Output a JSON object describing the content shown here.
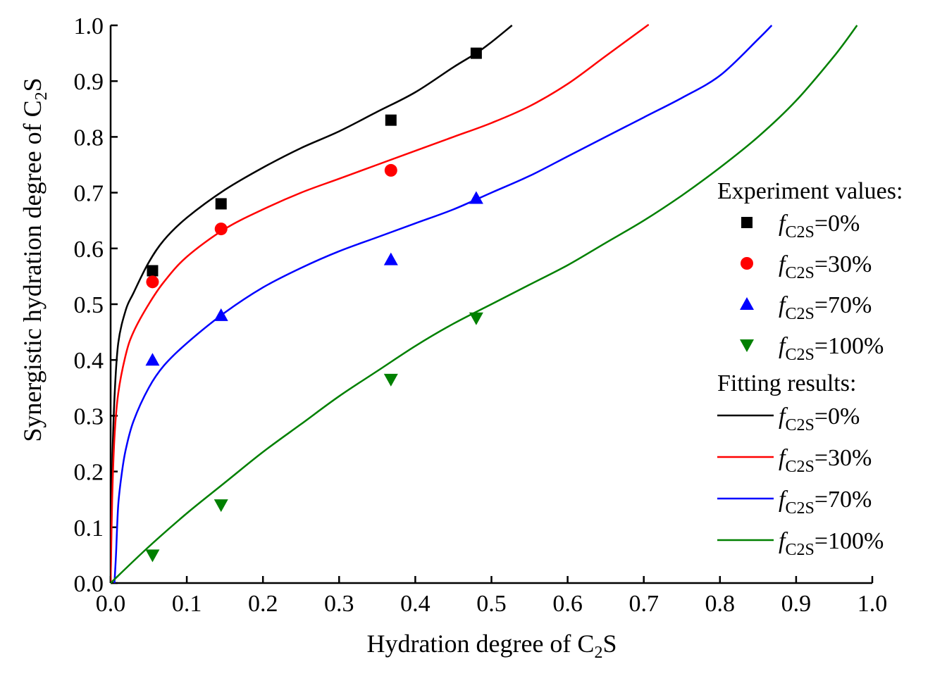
{
  "chart_data": {
    "type": "scatter",
    "xlabel": {
      "text": "Hydration degree of C",
      "sub": "2",
      "tail": "S"
    },
    "ylabel": {
      "text": "Synergistic hydration degree of C",
      "sub": "2",
      "tail": "S"
    },
    "xlim": [
      0.0,
      1.0
    ],
    "ylim": [
      0.0,
      1.0
    ],
    "xticks": [
      "0.0",
      "0.1",
      "0.2",
      "0.3",
      "0.4",
      "0.5",
      "0.6",
      "0.7",
      "0.8",
      "0.9",
      "1.0"
    ],
    "yticks": [
      "0.0",
      "0.1",
      "0.2",
      "0.3",
      "0.4",
      "0.5",
      "0.6",
      "0.7",
      "0.8",
      "0.9",
      "1.0"
    ],
    "legend": {
      "position": "right",
      "experiment_title": "Experiment values:",
      "fitting_title": "Fitting results:",
      "label_prefix": "f",
      "label_sub": "C2S"
    },
    "experiment": [
      {
        "name": "fC2S=0%",
        "value_label": "=0%",
        "marker": "square",
        "color": "#000000",
        "x": [
          0.055,
          0.145,
          0.368,
          0.48
        ],
        "y": [
          0.56,
          0.68,
          0.83,
          0.95
        ]
      },
      {
        "name": "fC2S=30%",
        "value_label": "=30%",
        "marker": "circle",
        "color": "#ff0000",
        "x": [
          0.055,
          0.145,
          0.368
        ],
        "y": [
          0.54,
          0.635,
          0.74
        ]
      },
      {
        "name": "fC2S=70%",
        "value_label": "=70%",
        "marker": "triangle-up",
        "color": "#0000ff",
        "x": [
          0.055,
          0.145,
          0.368,
          0.48
        ],
        "y": [
          0.4,
          0.48,
          0.58,
          0.69
        ]
      },
      {
        "name": "fC2S=100%",
        "value_label": "=100%",
        "marker": "triangle-down",
        "color": "#008000",
        "x": [
          0.055,
          0.145,
          0.368,
          0.48
        ],
        "y": [
          0.05,
          0.14,
          0.365,
          0.475
        ]
      }
    ],
    "fitting": [
      {
        "name": "fC2S=0%",
        "value_label": "=0%",
        "color": "#000000",
        "x": [
          0,
          0.002,
          0.005,
          0.01,
          0.02,
          0.03,
          0.05,
          0.07,
          0.1,
          0.15,
          0.2,
          0.25,
          0.3,
          0.35,
          0.4,
          0.45,
          0.48,
          0.5,
          0.527
        ],
        "y": [
          0,
          0.2,
          0.33,
          0.43,
          0.49,
          0.52,
          0.575,
          0.615,
          0.655,
          0.705,
          0.745,
          0.78,
          0.81,
          0.845,
          0.88,
          0.925,
          0.95,
          0.97,
          1.0
        ]
      },
      {
        "name": "fC2S=30%",
        "value_label": "=30%",
        "color": "#ff0000",
        "x": [
          0,
          0.002,
          0.005,
          0.01,
          0.02,
          0.03,
          0.05,
          0.07,
          0.1,
          0.15,
          0.2,
          0.25,
          0.3,
          0.35,
          0.4,
          0.45,
          0.5,
          0.55,
          0.6,
          0.65,
          0.7,
          0.705
        ],
        "y": [
          0,
          0.15,
          0.26,
          0.34,
          0.41,
          0.45,
          0.5,
          0.54,
          0.585,
          0.635,
          0.67,
          0.7,
          0.725,
          0.75,
          0.775,
          0.8,
          0.825,
          0.855,
          0.895,
          0.945,
          0.995,
          1.0
        ]
      },
      {
        "name": "fC2S=70%",
        "value_label": "=70%",
        "color": "#0000ff",
        "x": [
          0.005,
          0.007,
          0.01,
          0.015,
          0.02,
          0.03,
          0.05,
          0.07,
          0.1,
          0.15,
          0.2,
          0.25,
          0.3,
          0.35,
          0.4,
          0.45,
          0.5,
          0.55,
          0.6,
          0.65,
          0.7,
          0.75,
          0.8,
          0.85,
          0.868
        ],
        "y": [
          0,
          0.05,
          0.14,
          0.2,
          0.24,
          0.29,
          0.35,
          0.39,
          0.43,
          0.485,
          0.53,
          0.565,
          0.595,
          0.62,
          0.645,
          0.67,
          0.7,
          0.73,
          0.765,
          0.8,
          0.835,
          0.87,
          0.91,
          0.975,
          1.0
        ]
      },
      {
        "name": "fC2S=100%",
        "value_label": "=100%",
        "color": "#008000",
        "x": [
          0,
          0.05,
          0.1,
          0.15,
          0.2,
          0.25,
          0.3,
          0.35,
          0.4,
          0.45,
          0.5,
          0.55,
          0.6,
          0.65,
          0.7,
          0.75,
          0.8,
          0.85,
          0.9,
          0.95,
          0.98
        ],
        "y": [
          0,
          0.065,
          0.125,
          0.18,
          0.235,
          0.285,
          0.335,
          0.38,
          0.425,
          0.465,
          0.5,
          0.535,
          0.57,
          0.61,
          0.65,
          0.695,
          0.745,
          0.8,
          0.865,
          0.945,
          1.0
        ]
      }
    ]
  }
}
